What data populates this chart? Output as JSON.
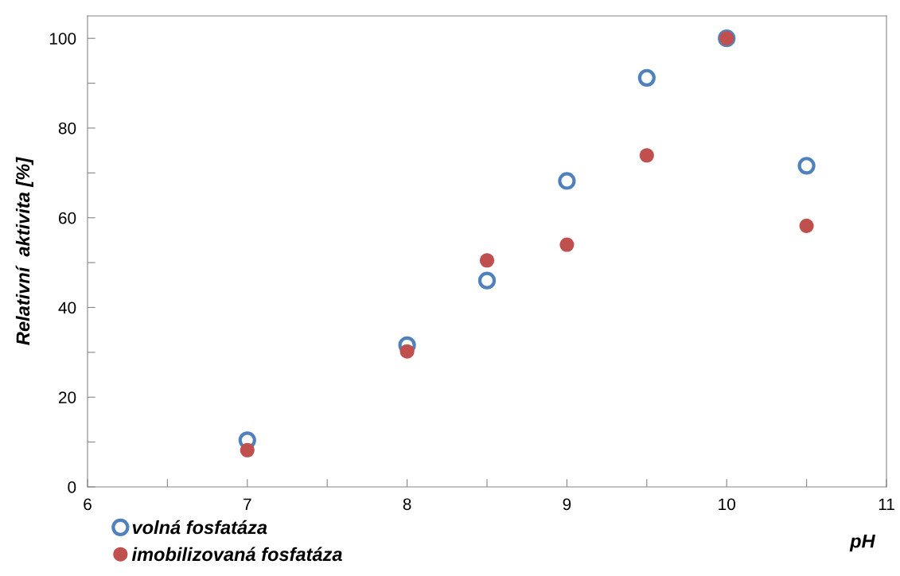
{
  "chart_data": {
    "type": "scatter",
    "xlabel": "pH",
    "ylabel": "Relativní  aktivita [%]",
    "xlim": [
      6,
      11
    ],
    "xticks": [
      6,
      {
        "value": 6.5,
        "label": null
      },
      7,
      {
        "value": 7.5,
        "label": null
      },
      8,
      {
        "value": 8.5,
        "label": null
      },
      9,
      {
        "value": 9.5,
        "label": null
      },
      10,
      {
        "value": 10.5,
        "label": null
      },
      11
    ],
    "ylim": [
      0,
      105
    ],
    "yticks": [
      0,
      {
        "value": 10,
        "label": null
      },
      20,
      {
        "value": 30,
        "label": null
      },
      40,
      {
        "value": 50,
        "label": null
      },
      60,
      {
        "value": 70,
        "label": null
      },
      80,
      {
        "value": 90,
        "label": null
      },
      100
    ],
    "grid": false,
    "legend": "bottom left",
    "marker": "circle",
    "series": [
      {
        "name": "volná fosfatáza",
        "color": "#4f81bd",
        "x": [
          7,
          8,
          8.5,
          9,
          9.5,
          10,
          10.5
        ],
        "values": [
          10.4,
          31.6,
          46.0,
          68.2,
          91.2,
          100,
          71.6
        ]
      },
      {
        "name": "imobilizovaná fosfatáza",
        "color": "#c0504d",
        "x": [
          7,
          8,
          8.5,
          9,
          9.5,
          10,
          10.5
        ],
        "values": [
          8.2,
          30.2,
          50.5,
          54.0,
          73.9,
          100,
          58.2
        ]
      }
    ]
  }
}
